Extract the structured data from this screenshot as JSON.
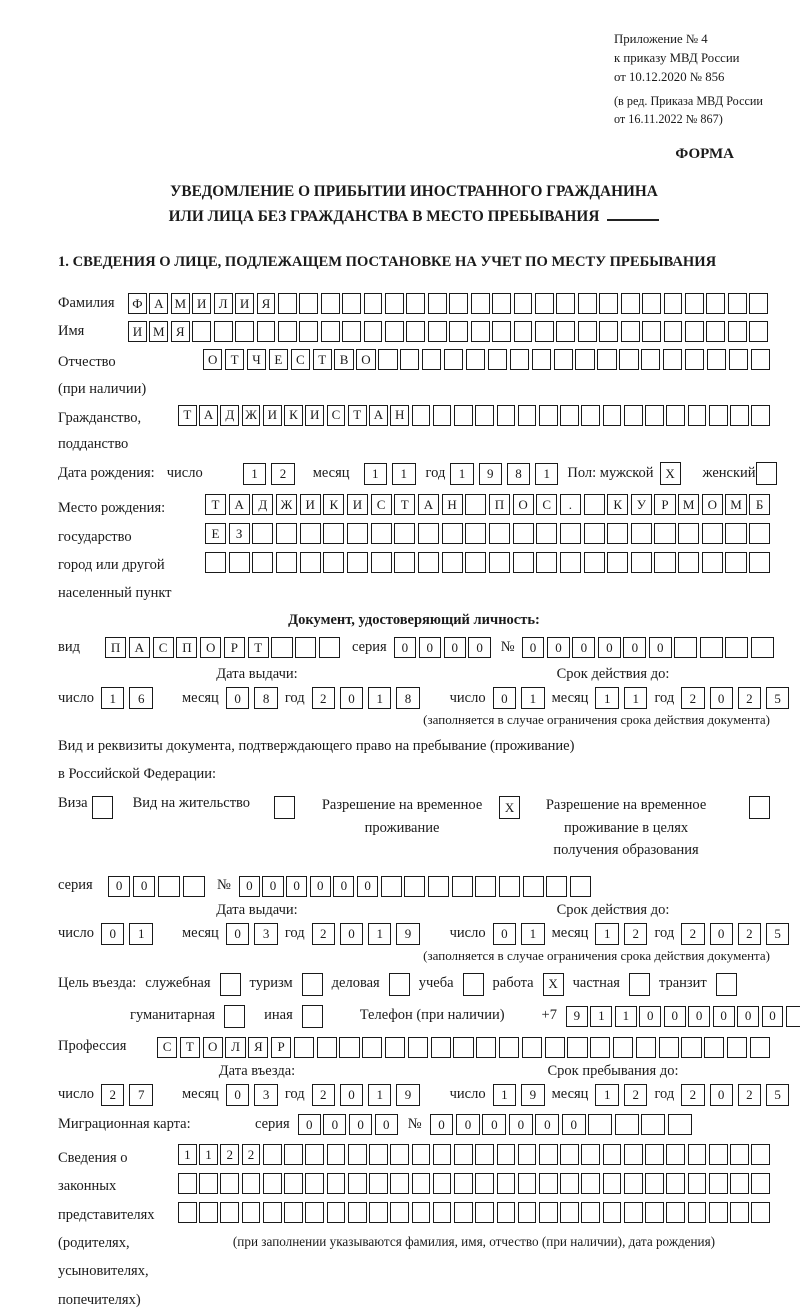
{
  "meta": {
    "appendix": [
      "Приложение № 4",
      "к приказу МВД России",
      "от 10.12.2020 № 856"
    ],
    "edition": [
      "(в ред. Приказа МВД России",
      "от 16.11.2022 № 867)"
    ],
    "form_label": "ФОРМА"
  },
  "title": {
    "line1": "УВЕДОМЛЕНИЕ О ПРИБЫТИИ ИНОСТРАННОГО ГРАЖДАНИНА",
    "line2": "ИЛИ ЛИЦА БЕЗ ГРАЖДАНСТВА В МЕСТО ПРЕБЫВАНИЯ"
  },
  "section1_heading": "1. СВЕДЕНИЯ О ЛИЦЕ, ПОДЛЕЖАЩЕМ ПОСТАНОВКЕ НА УЧЕТ ПО МЕСТУ ПРЕБЫВАНИЯ",
  "labels": {
    "day": "число",
    "month": "месяц",
    "year": "год",
    "series": "серия",
    "number": "№"
  },
  "surname": {
    "label": "Фамилия",
    "cells": {
      "value": "ФАМИЛИЯ",
      "count": 30
    }
  },
  "firstname": {
    "label": "Имя",
    "cells": {
      "value": "ИМЯ",
      "count": 30
    }
  },
  "patronymic": {
    "label1": "Отчество",
    "label2": "(при наличии)",
    "cells": {
      "value": "ОТЧЕСТВО",
      "count": 26
    }
  },
  "citizenship": {
    "label1": "Гражданство,",
    "label2": "подданство",
    "cells": {
      "value": "ТАДЖИКИСТАН",
      "count": 28
    }
  },
  "birthdate": {
    "label": "Дата рождения:",
    "day": {
      "value": "12",
      "count": 2
    },
    "month": {
      "value": "11",
      "count": 2
    },
    "year": {
      "value": "1981",
      "count": 4
    },
    "sex_label": "Пол: мужской",
    "male_box": {
      "value": "X",
      "count": 1
    },
    "female_label": "женский",
    "female_box": {
      "value": "",
      "count": 1
    }
  },
  "birthplace": {
    "label1": "Место рождения:",
    "label2": "государство",
    "label3": "город или другой",
    "label4": "населенный пункт",
    "row1": {
      "value": "ТАДЖИКИСТАН ПОС. КУРМОМБ",
      "count": 24
    },
    "row2": {
      "value": "ЕЗ",
      "count": 24
    },
    "row3": {
      "value": "",
      "count": 24
    }
  },
  "identity_doc": {
    "heading": "Документ, удостоверяющий личность:",
    "kind_label": "вид",
    "kind": {
      "value": "ПАСПОРТ",
      "count": 10
    },
    "series": {
      "value": "0000",
      "count": 4
    },
    "number": {
      "value": "000000",
      "count": 10
    },
    "issue_heading": "Дата выдачи:",
    "issue_day": {
      "value": "16",
      "count": 2
    },
    "issue_month": {
      "value": "08",
      "count": 2
    },
    "issue_year": {
      "value": "2018",
      "count": 4
    },
    "valid_heading": "Срок действия до:",
    "valid_day": {
      "value": "01",
      "count": 2
    },
    "valid_month": {
      "value": "11",
      "count": 2
    },
    "valid_year": {
      "value": "2025",
      "count": 4
    },
    "note": "(заполняется в случае ограничения срока действия документа)"
  },
  "residence_doc": {
    "intro1": "Вид и реквизиты документа, подтверждающего право на пребывание (проживание)",
    "intro2": "в Российской Федерации:",
    "visa_label": "Виза",
    "visa_box": {
      "value": "",
      "count": 1
    },
    "residence_permit_label": "Вид на жительство",
    "residence_permit_box": {
      "value": "",
      "count": 1
    },
    "temp_permit_label1": "Разрешение на временное",
    "temp_permit_label2": "проживание",
    "temp_permit_box": {
      "value": "X",
      "count": 1
    },
    "edu_permit_label1": "Разрешение на временное",
    "edu_permit_label2": "проживание в целях",
    "edu_permit_label3": "получения образования",
    "edu_permit_box": {
      "value": "",
      "count": 1
    },
    "series": {
      "value": "00",
      "count": 4
    },
    "number": {
      "value": "000000",
      "count": 15
    },
    "issue_heading": "Дата выдачи:",
    "issue_day": {
      "value": "01",
      "count": 2
    },
    "issue_month": {
      "value": "03",
      "count": 2
    },
    "issue_year": {
      "value": "2019",
      "count": 4
    },
    "valid_heading": "Срок действия до:",
    "valid_day": {
      "value": "01",
      "count": 2
    },
    "valid_month": {
      "value": "12",
      "count": 2
    },
    "valid_year": {
      "value": "2025",
      "count": 4
    },
    "note": "(заполняется в случае ограничения срока действия документа)"
  },
  "purpose": {
    "label": "Цель въезда:",
    "opt1_label": "служебная",
    "opt1_box": {
      "value": "",
      "count": 1
    },
    "opt2_label": "туризм",
    "opt2_box": {
      "value": "",
      "count": 1
    },
    "opt3_label": "деловая",
    "opt3_box": {
      "value": "",
      "count": 1
    },
    "opt4_label": "учеба",
    "opt4_box": {
      "value": "",
      "count": 1
    },
    "opt5_label": "работа",
    "opt5_box": {
      "value": "X",
      "count": 1
    },
    "opt6_label": "частная",
    "opt6_box": {
      "value": "",
      "count": 1
    },
    "opt7_label": "транзит",
    "opt7_box": {
      "value": "",
      "count": 1
    },
    "opt8_label": "гуманитарная",
    "opt8_box": {
      "value": "",
      "count": 1
    },
    "opt9_label": "иная",
    "opt9_box": {
      "value": "",
      "count": 1
    },
    "phone_label": "Телефон (при наличии)",
    "phone_prefix": "+7",
    "phone": {
      "value": "911000000",
      "count": 10
    }
  },
  "profession": {
    "label": "Профессия",
    "cells": {
      "value": "СТОЛЯР",
      "count": 27
    }
  },
  "entry": {
    "date_heading": "Дата въезда:",
    "stay_heading": "Срок пребывания до:",
    "entry_day": {
      "value": "27",
      "count": 2
    },
    "entry_month": {
      "value": "03",
      "count": 2
    },
    "entry_year": {
      "value": "2019",
      "count": 4
    },
    "stay_day": {
      "value": "19",
      "count": 2
    },
    "stay_month": {
      "value": "12",
      "count": 2
    },
    "stay_year": {
      "value": "2025",
      "count": 4
    }
  },
  "migration_card": {
    "label": "Миграционная карта:",
    "series": {
      "value": "0000",
      "count": 4
    },
    "number": {
      "value": "000000",
      "count": 10
    }
  },
  "representatives": {
    "label_lines": [
      "Сведения о",
      "законных",
      "представителях",
      "(родителях,",
      "усыновителях,",
      "попечителях)"
    ],
    "row1": {
      "value": "1122",
      "count": 28
    },
    "row2": {
      "value": "",
      "count": 28
    },
    "row3": {
      "value": "",
      "count": 28
    },
    "note": "(при заполнении указываются фамилия, имя, отчество (при наличии), дата рождения)"
  }
}
